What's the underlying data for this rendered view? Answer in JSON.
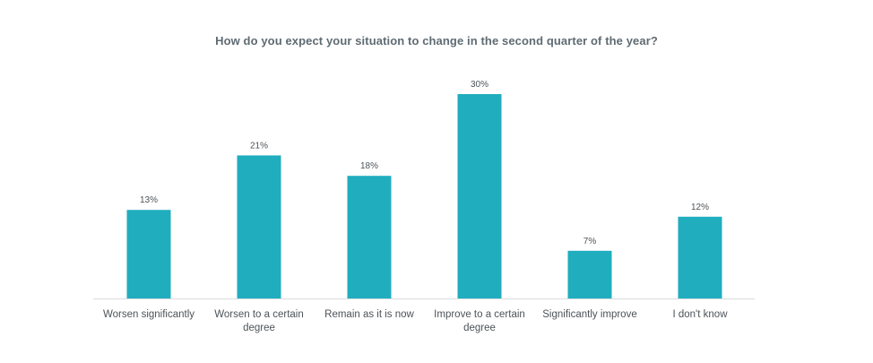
{
  "chart_data": {
    "type": "bar",
    "title": "How do you expect your situation to change in the second quarter of the year?",
    "xlabel": "",
    "ylabel": "",
    "categories": [
      [
        "Worsen significantly"
      ],
      [
        "Worsen to a certain",
        "degree"
      ],
      [
        "Remain as it is now"
      ],
      [
        "Improve to a certain",
        "degree"
      ],
      [
        "Significantly improve"
      ],
      [
        "I don't know"
      ]
    ],
    "values": [
      13,
      21,
      18,
      30,
      7,
      12
    ],
    "value_labels": [
      "13%",
      "21%",
      "18%",
      "30%",
      "7%",
      "12%"
    ],
    "value_suffix": "%",
    "ylim": [
      0,
      30
    ],
    "grid": false,
    "legend": "none",
    "colors": {
      "bar": "#20adbd",
      "axis": "#d9dcdf",
      "title": "#5f6b73",
      "text": "#4d5358"
    }
  }
}
